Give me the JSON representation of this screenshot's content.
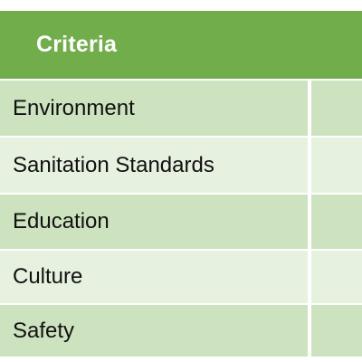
{
  "table": {
    "header": "Criteria",
    "rows": [
      {
        "label": "Environment"
      },
      {
        "label": "Sanitation Standards"
      },
      {
        "label": "Education"
      },
      {
        "label": "Culture"
      },
      {
        "label": "Safety"
      }
    ]
  },
  "colors": {
    "header": "#72ad4b",
    "row_dark": "#cde3bf",
    "row_light": "#e6f1df",
    "divider": "#ffffff"
  }
}
